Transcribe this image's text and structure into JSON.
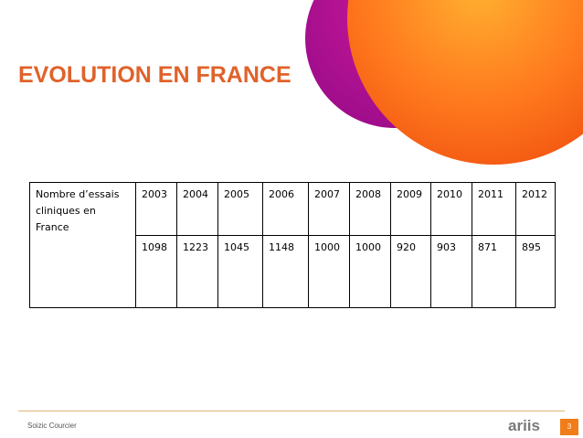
{
  "slide": {
    "title": "EVOLUTION EN FRANCE",
    "row_label": "Nombre d’essais cliniques en France",
    "years": [
      "2003",
      "2004",
      "2005",
      "2006",
      "2007",
      "2008",
      "2009",
      "2010",
      "2011",
      "2012"
    ],
    "values": [
      "1098",
      "1223",
      "1045",
      "1148",
      "1000",
      "1000",
      "920",
      "903",
      "871",
      "895"
    ]
  },
  "footer": {
    "author": "Soizic Courcier",
    "logo_text": "ariis",
    "page_number": "3"
  },
  "colors": {
    "title": "#e0622a",
    "orange_circle": "#ff6a1a",
    "magenta_shape": "#c0109a",
    "accent": "#f07d1a"
  }
}
